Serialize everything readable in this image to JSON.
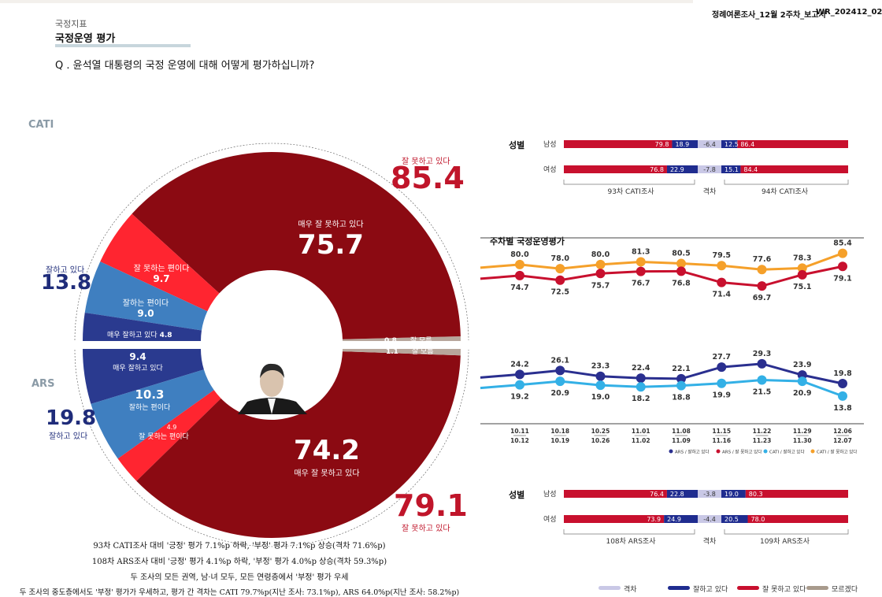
{
  "header": {
    "section": "국정지표",
    "title": "국정운영 평가",
    "question": "Q . 윤석열 대통령의 국정 운영에 대해 어떻게 평가하십니까?",
    "doc_name": "정례여론조사_12월 2주차_보고서",
    "doc_code": "WR_202412_02"
  },
  "donut": {
    "cati_label": "CATI",
    "ars_label": "ARS",
    "cati": {
      "negative_total": "85.4",
      "negative_total_label": "잘 못하고 있다",
      "positive_total": "13.8",
      "positive_total_label": "잘하고 있다",
      "very_bad": "75.7",
      "very_bad_label": "매우 잘 못하고 있다",
      "bad": "9.7",
      "bad_label": "잘 못하는 편이다",
      "good": "9.0",
      "good_label": "잘하는 편이다",
      "very_good": "4.8",
      "very_good_label": "매우 잘하고 있다",
      "dont_know": "0.8",
      "dont_know_label": "잘 모름"
    },
    "ars": {
      "negative_total": "79.1",
      "negative_total_label": "잘 못하고 있다",
      "positive_total": "19.8",
      "positive_total_label": "잘하고 있다",
      "very_bad": "74.2",
      "very_bad_label": "매우 잘 못하고 있다",
      "bad": "4.9",
      "bad_label": "잘 못하는 편이다",
      "good": "10.3",
      "good_label": "잘하는 편이다",
      "very_good": "9.4",
      "very_good_label": "매우 잘하고 있다",
      "dont_know": "1.1",
      "dont_know_label": "잘 모름"
    },
    "colors": {
      "very_bad": "#8b0a12",
      "bad": "#ff2530",
      "good": "#3f7fc0",
      "very_good": "#2a3a8f",
      "dont_know": "#b8a79c"
    }
  },
  "notes": [
    "93차 CATI조사 대비 '긍정' 평가 7.1%p 하락, '부정' 평가 7.1%p 상승(격차 71.6%p)",
    "108차 ARS조사 대비 '긍정' 평가 4.1%p 하락, '부정' 평가 4.0%p 상승(격차 59.3%p)",
    "두 조사의 모든 권역, 남·녀 모두, 모든 연령층에서 '부정' 평가 우세",
    "두 조사의 중도층에서도 '부정' 평가가 우세하고, 평가 간 격차는 CATI 79.7%p(지난 조사: 73.1%p), ARS 64.0%p(지난 조사: 58.2%p)"
  ],
  "gender_cati": {
    "title": "성별",
    "rows": [
      {
        "label": "남성",
        "prev_neg": "79.8",
        "prev_pos": "18.9",
        "gap": "-6.4",
        "curr_pos": "12.5",
        "curr_neg": "86.4"
      },
      {
        "label": "여성",
        "prev_neg": "76.8",
        "prev_pos": "22.9",
        "gap": "-7.8",
        "curr_pos": "15.1",
        "curr_neg": "84.4"
      }
    ],
    "footer": {
      "left": "93차 CATI조사",
      "mid": "격차",
      "right": "94차 CATI조사"
    }
  },
  "gender_ars": {
    "title": "성별",
    "rows": [
      {
        "label": "남성",
        "prev_neg": "76.4",
        "prev_pos": "22.8",
        "gap": "-3.8",
        "curr_pos": "19.0",
        "curr_neg": "80.3"
      },
      {
        "label": "여성",
        "prev_neg": "73.9",
        "prev_pos": "24.9",
        "gap": "-4.4",
        "curr_pos": "20.5",
        "curr_neg": "78.0"
      }
    ],
    "footer": {
      "left": "108차 ARS조사",
      "mid": "격차",
      "right": "109차 ARS조사"
    }
  },
  "chart_data": {
    "type": "line",
    "title": "주차별 국정운영평가",
    "x_top": [
      "10.11",
      "10.18",
      "10.25",
      "11.01",
      "11.08",
      "11.15",
      "11.22",
      "11.29",
      "12.06"
    ],
    "x_bottom": [
      "10.12",
      "10.19",
      "10.26",
      "11.02",
      "11.09",
      "11.16",
      "11.23",
      "11.30",
      "12.07"
    ],
    "series": [
      {
        "name": "CATI / 잘 못하고 있다",
        "color": "#f5a02a",
        "values": [
          80.0,
          78.0,
          80.0,
          81.3,
          80.5,
          79.5,
          77.6,
          78.3,
          85.4
        ]
      },
      {
        "name": "ARS / 잘 못하고 있다",
        "color": "#c8102e",
        "values": [
          74.7,
          72.5,
          75.7,
          76.7,
          76.8,
          71.4,
          69.7,
          75.1,
          79.1
        ]
      },
      {
        "name": "ARS / 잘하고 있다",
        "color": "#2a2f8f",
        "values": [
          24.2,
          26.1,
          23.3,
          22.4,
          22.1,
          27.7,
          29.3,
          23.9,
          19.8
        ]
      },
      {
        "name": "CATI / 잘하고 있다",
        "color": "#33b0e6",
        "values": [
          19.2,
          20.9,
          19.0,
          18.2,
          18.8,
          19.9,
          21.5,
          20.9,
          13.8
        ]
      }
    ],
    "legend_order": [
      "ARS / 잘하고 있다",
      "ARS / 잘 못하고 있다",
      "CATI / 잘하고 있다",
      "CATI / 잘 못하고 있다"
    ]
  },
  "bottom_legend": {
    "items": [
      {
        "label": "격차",
        "color": "#c9c8e6"
      },
      {
        "label": "잘하고 있다",
        "color": "#1f2c8f"
      },
      {
        "label": "잘 못하고 있다",
        "color": "#c8102e"
      },
      {
        "label": "모르겠다",
        "color": "#a89a8c"
      }
    ]
  }
}
